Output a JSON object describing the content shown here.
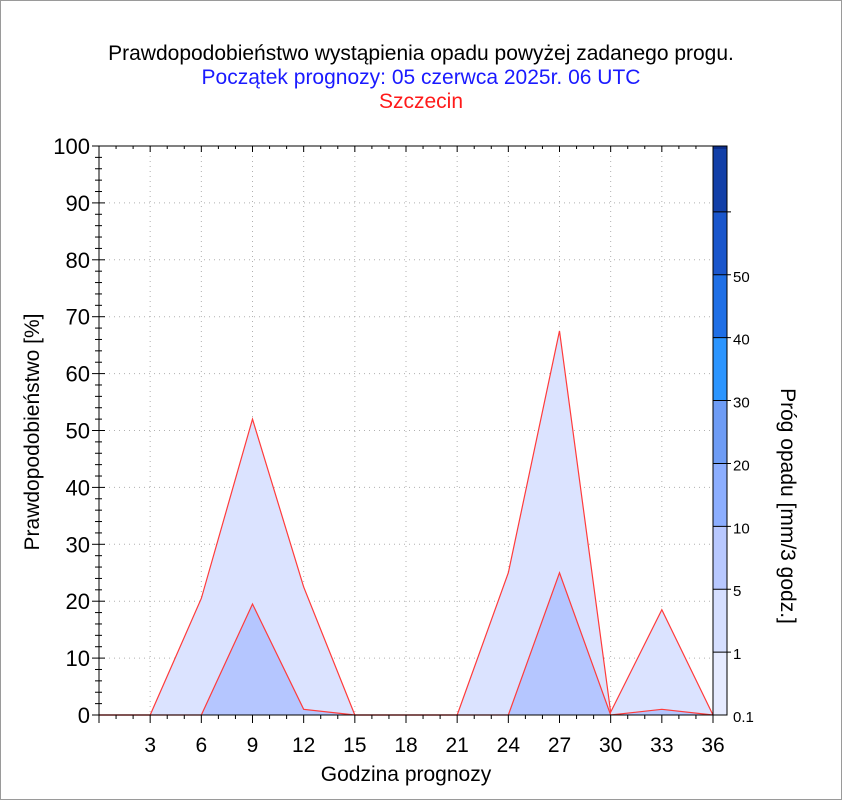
{
  "chart_data": {
    "type": "area",
    "title": "Prawdopodobieństwo wystąpienia opadu powyżej zadanego progu.",
    "subtitle": "Początek prognozy: 05 czerwca 2025r. 06 UTC",
    "location": "Szczecin",
    "xlabel": "Godzina prognozy",
    "ylabel": "Prawdopodobieństwo [%]",
    "colorbar_label": "Próg opadu [mm/3 godz.]",
    "xlim": [
      0,
      36
    ],
    "ylim": [
      0,
      100
    ],
    "x_ticks": [
      3,
      6,
      9,
      12,
      15,
      18,
      21,
      24,
      27,
      30,
      33,
      36
    ],
    "y_ticks": [
      0,
      10,
      20,
      30,
      40,
      50,
      60,
      70,
      80,
      90,
      100
    ],
    "x": [
      0,
      3,
      6,
      9,
      12,
      15,
      18,
      21,
      24,
      27,
      30,
      33,
      36
    ],
    "series": [
      {
        "name": "0.1",
        "color": "#dbe3ff",
        "values": [
          0,
          0,
          20.5,
          52,
          22.5,
          0,
          0,
          0,
          25,
          67.5,
          0.5,
          18.5,
          0
        ]
      },
      {
        "name": "1",
        "color": "#b5c6ff",
        "values": [
          0,
          0,
          0,
          19.5,
          1,
          0,
          0,
          0,
          0,
          25,
          0,
          1,
          0
        ]
      }
    ],
    "colorbar": {
      "levels": [
        {
          "label": "0.1",
          "color": "#e6ebff"
        },
        {
          "label": "1",
          "color": "#d6dfff"
        },
        {
          "label": "5",
          "color": "#b8c8ff"
        },
        {
          "label": "10",
          "color": "#8caeff"
        },
        {
          "label": "20",
          "color": "#6e9cf5"
        },
        {
          "label": "30",
          "color": "#2b95ff"
        },
        {
          "label": "40",
          "color": "#1f6fe6"
        },
        {
          "label": "50",
          "color": "#1a56cc"
        },
        {
          "label": "",
          "color": "#1240a8"
        }
      ],
      "top_color": "#0b2d8a"
    },
    "grid": true,
    "line_color": "#ff3b3b"
  }
}
